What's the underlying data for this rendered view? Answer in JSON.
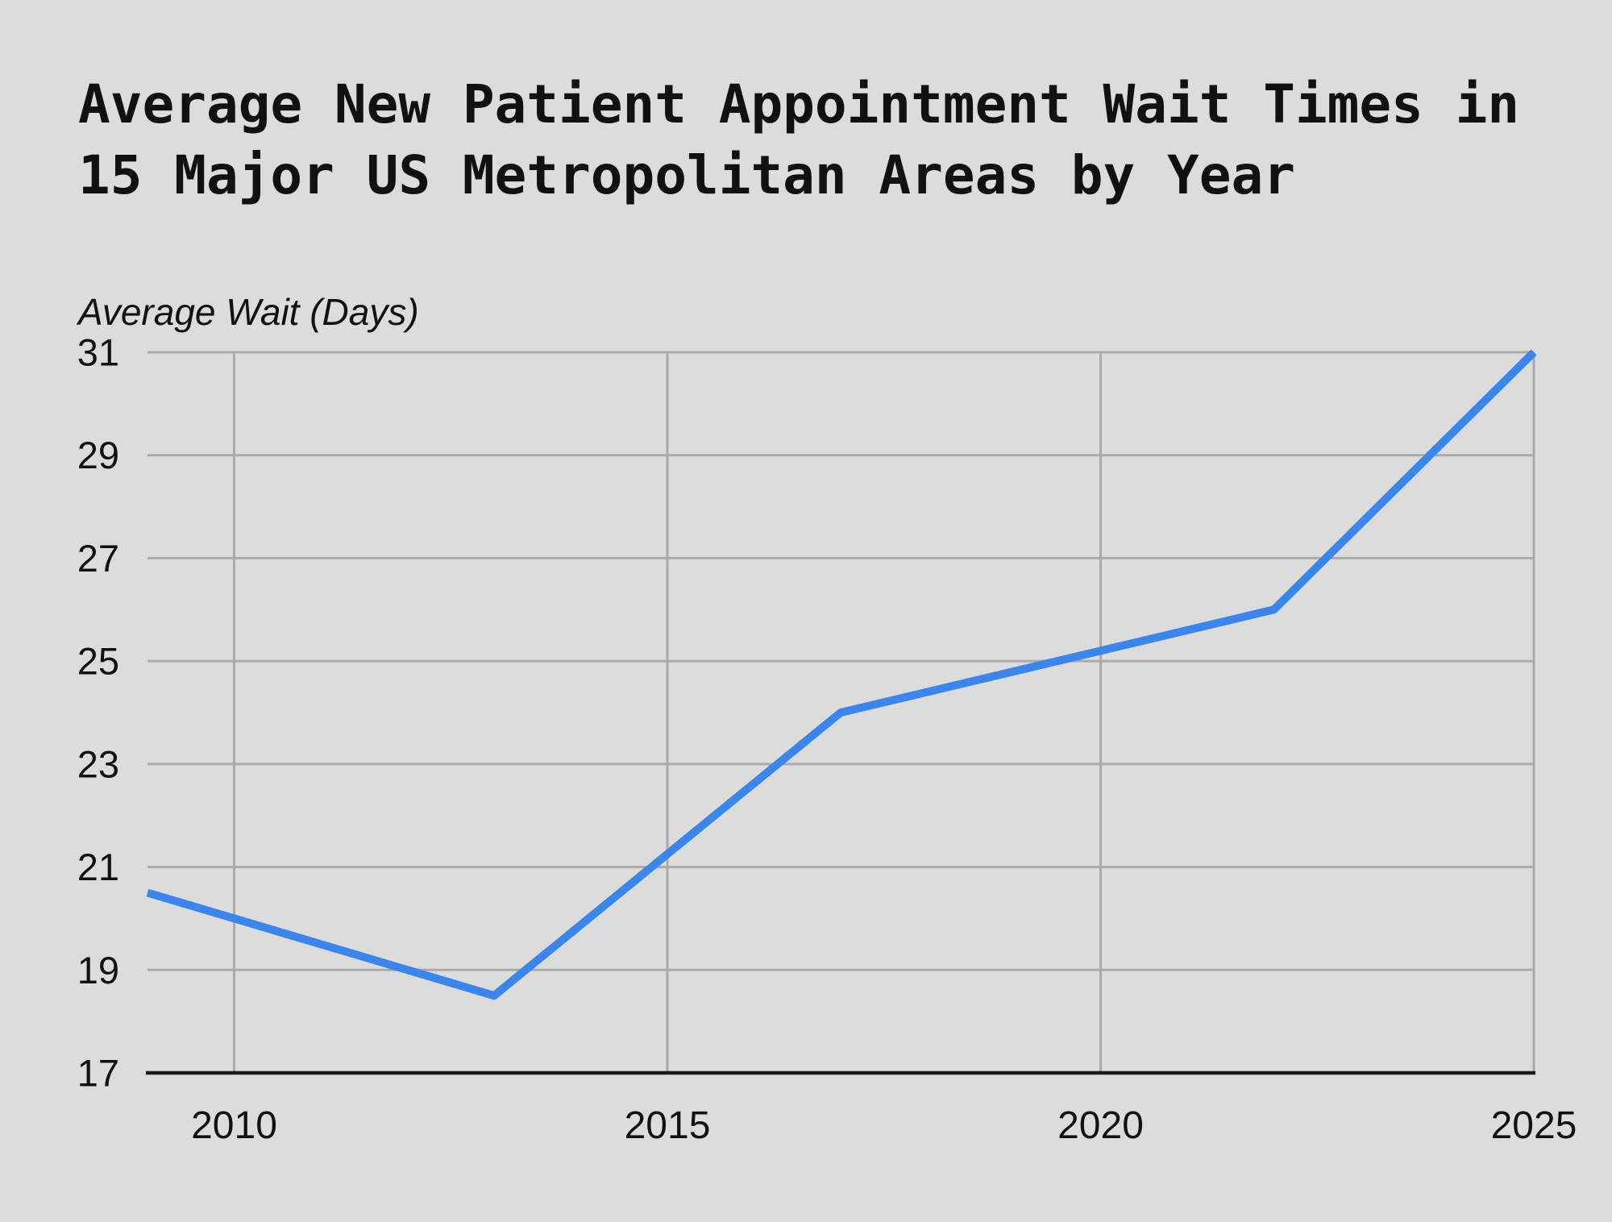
{
  "page": {
    "background": "#dcdcdc"
  },
  "chart_data": {
    "type": "line",
    "title": "Average New Patient Appointment Wait Times in 15 Major US Metropolitan Areas by Year",
    "title_lines": [
      "Average New Patient Appointment Wait Times in",
      "15 Major US Metropolitan Areas by Year"
    ],
    "ylabel": "Average Wait (Days)",
    "xlabel": "",
    "x": [
      2009,
      2013,
      2017,
      2022,
      2025
    ],
    "y": [
      20.5,
      18.5,
      24,
      26,
      31
    ],
    "xlim": [
      2009,
      2025
    ],
    "ylim": [
      17,
      31
    ],
    "x_ticks": [
      2010,
      2015,
      2020,
      2025
    ],
    "y_ticks": [
      17,
      19,
      21,
      23,
      25,
      27,
      29,
      31
    ],
    "grid": true,
    "legend_position": "none",
    "colors": {
      "line": "#3b86ed",
      "grid": "#aaaaaa",
      "axis": "#1a1a1a",
      "text": "#111111",
      "background": "#dcdcdc"
    }
  }
}
